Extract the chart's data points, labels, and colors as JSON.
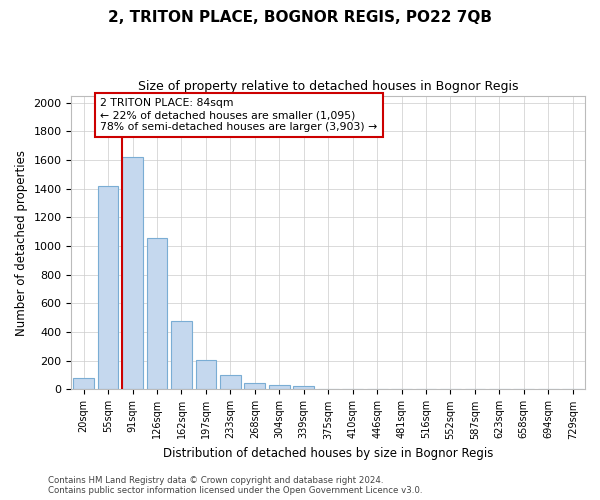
{
  "title1": "2, TRITON PLACE, BOGNOR REGIS, PO22 7QB",
  "title2": "Size of property relative to detached houses in Bognor Regis",
  "xlabel": "Distribution of detached houses by size in Bognor Regis",
  "ylabel": "Number of detached properties",
  "categories": [
    "20sqm",
    "55sqm",
    "91sqm",
    "126sqm",
    "162sqm",
    "197sqm",
    "233sqm",
    "268sqm",
    "304sqm",
    "339sqm",
    "375sqm",
    "410sqm",
    "446sqm",
    "481sqm",
    "516sqm",
    "552sqm",
    "587sqm",
    "623sqm",
    "658sqm",
    "694sqm",
    "729sqm"
  ],
  "values": [
    80,
    1420,
    1620,
    1055,
    480,
    205,
    100,
    45,
    32,
    22,
    0,
    0,
    0,
    0,
    0,
    0,
    0,
    0,
    0,
    0,
    0
  ],
  "bar_color": "#c5d8ee",
  "bar_edge_color": "#7aadd4",
  "marker_label": "2 TRITON PLACE: 84sqm",
  "annotation_line1": "← 22% of detached houses are smaller (1,095)",
  "annotation_line2": "78% of semi-detached houses are larger (3,903) →",
  "annotation_box_color": "#ffffff",
  "annotation_box_edge": "#cc0000",
  "vline_color": "#cc0000",
  "grid_color": "#cccccc",
  "ylim": [
    0,
    2050
  ],
  "yticks": [
    0,
    200,
    400,
    600,
    800,
    1000,
    1200,
    1400,
    1600,
    1800,
    2000
  ],
  "footer1": "Contains HM Land Registry data © Crown copyright and database right 2024.",
  "footer2": "Contains public sector information licensed under the Open Government Licence v3.0.",
  "bg_color": "#ffffff"
}
